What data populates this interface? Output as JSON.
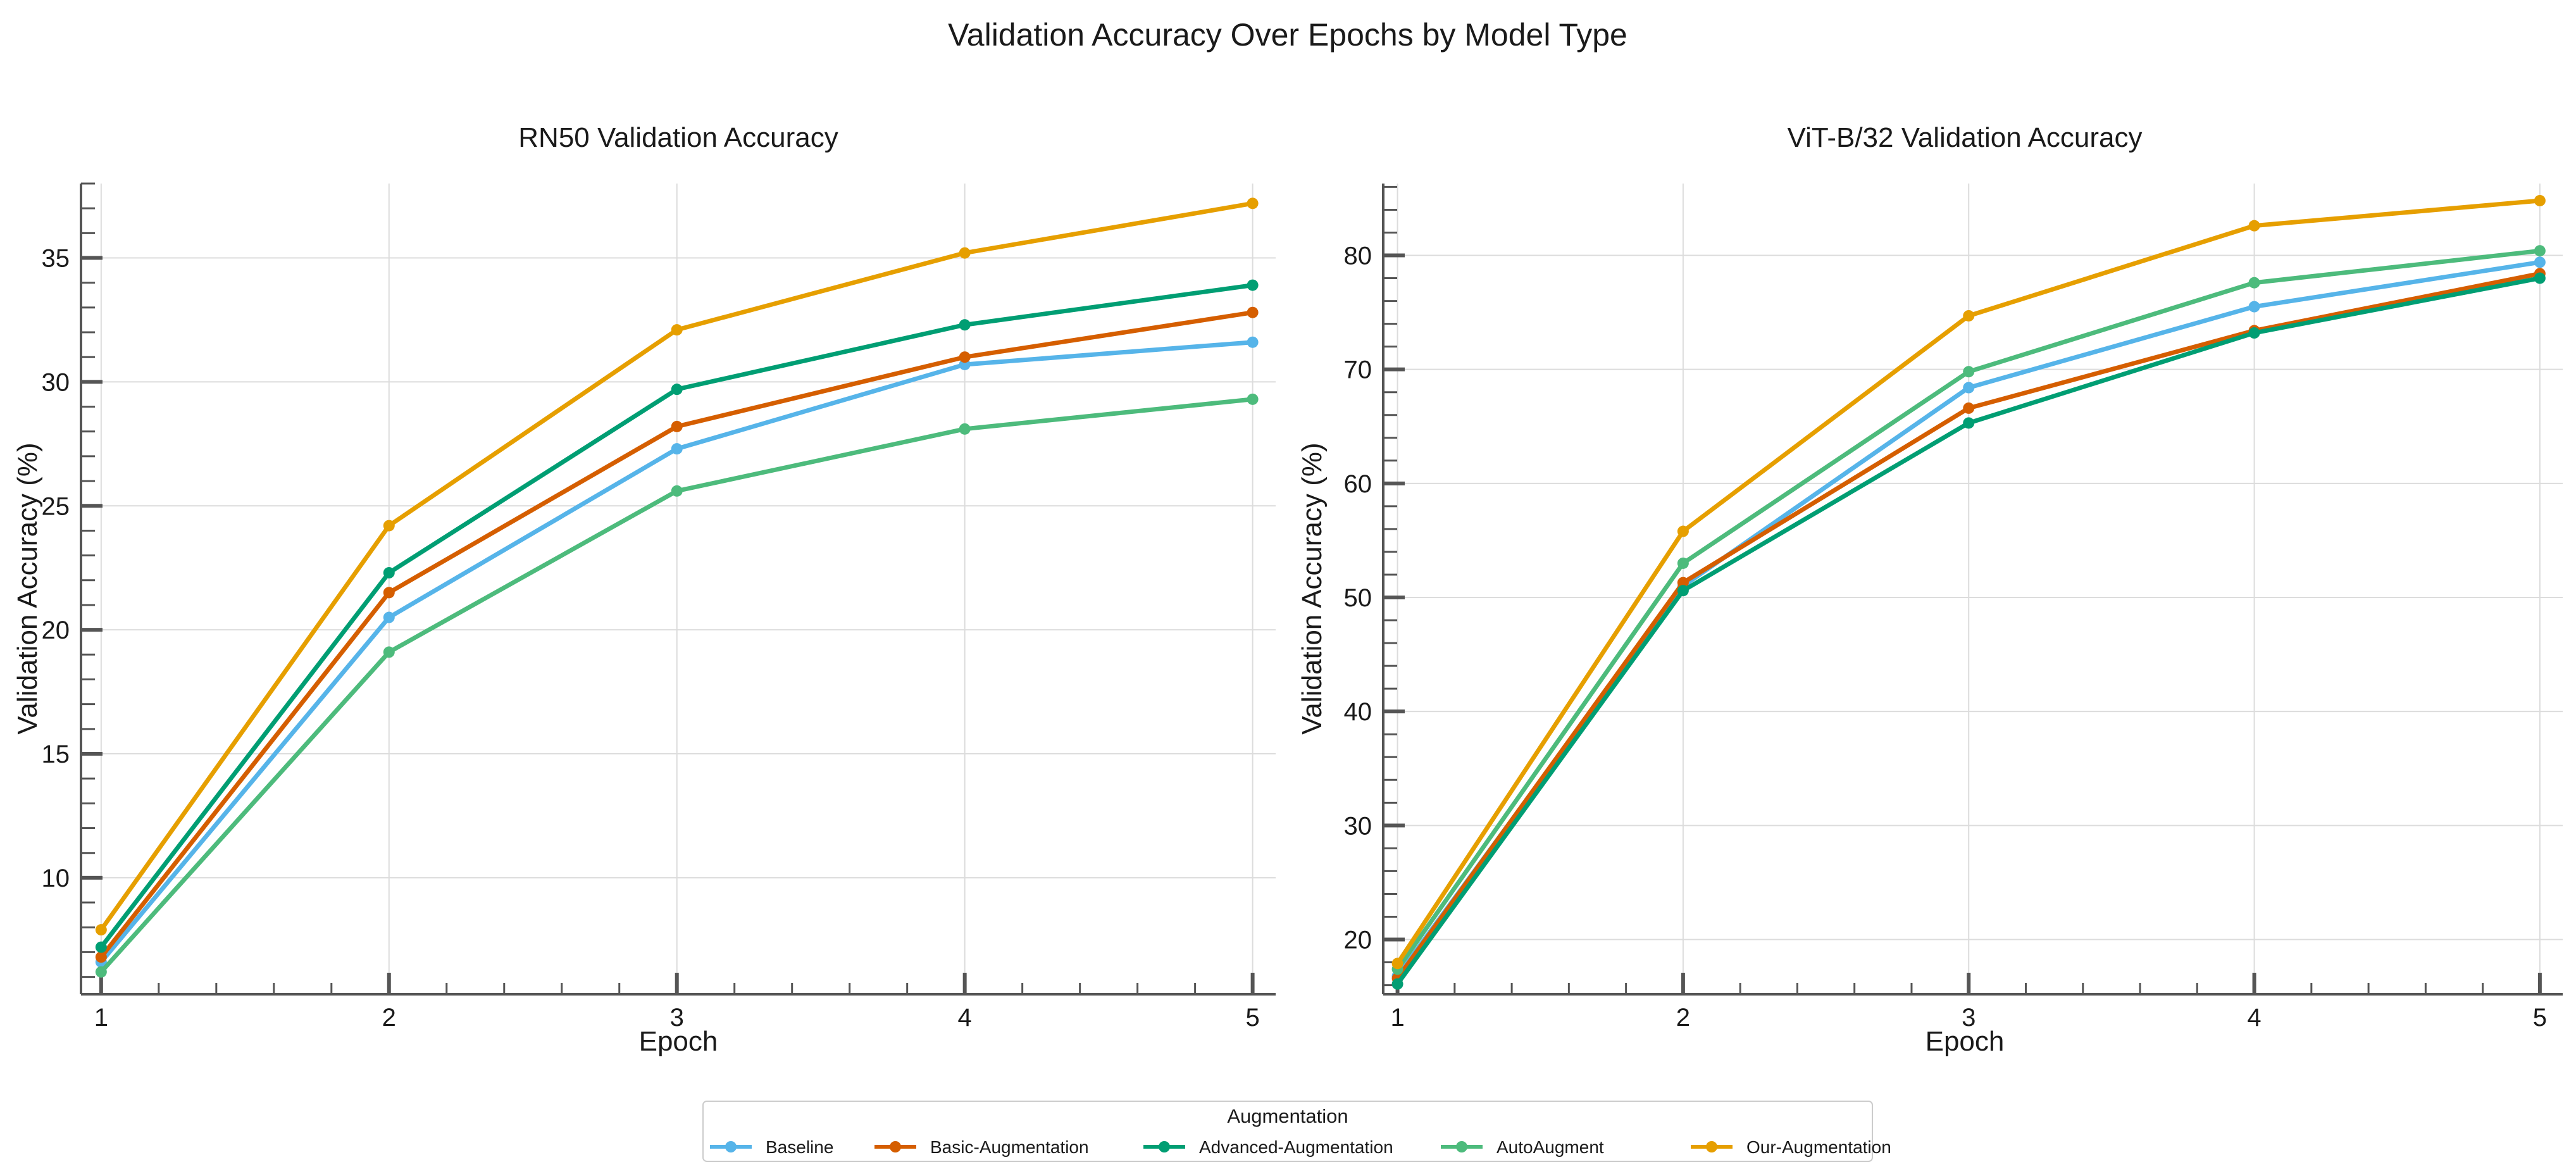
{
  "figure": {
    "title": "Validation Accuracy Over Epochs by Model Type"
  },
  "chart_data": [
    {
      "type": "line",
      "title": "RN50 Validation Accuracy",
      "xlabel": "Epoch",
      "ylabel": "Validation Accuracy (%)",
      "x": [
        1,
        2,
        3,
        4,
        5
      ],
      "xlim": [
        0.93,
        5.08
      ],
      "ylim": [
        5.3,
        38.0
      ],
      "xticks": [
        1,
        2,
        3,
        4,
        5
      ],
      "yticks": [
        10,
        15,
        20,
        25,
        30,
        35
      ],
      "grid": true,
      "series": [
        {
          "name": "Baseline",
          "values": [
            6.6,
            20.5,
            27.3,
            30.7,
            31.6
          ]
        },
        {
          "name": "Basic-Augmentation",
          "values": [
            6.8,
            21.5,
            28.2,
            31.0,
            32.8
          ]
        },
        {
          "name": "Advanced-Augmentation",
          "values": [
            7.2,
            22.3,
            29.7,
            32.3,
            33.9
          ]
        },
        {
          "name": "AutoAugment",
          "values": [
            6.2,
            19.1,
            25.6,
            28.1,
            29.3
          ]
        },
        {
          "name": "Our-Augmentation",
          "values": [
            7.9,
            24.2,
            32.1,
            35.2,
            37.2
          ]
        }
      ]
    },
    {
      "type": "line",
      "title": "ViT-B/32 Validation Accuracy",
      "xlabel": "Epoch",
      "ylabel": "Validation Accuracy (%)",
      "x": [
        1,
        2,
        3,
        4,
        5
      ],
      "xlim": [
        0.95,
        5.08
      ],
      "ylim": [
        15.2,
        86.3
      ],
      "xticks": [
        1,
        2,
        3,
        4,
        5
      ],
      "yticks": [
        20,
        30,
        40,
        50,
        60,
        70,
        80
      ],
      "grid": true,
      "series": [
        {
          "name": "Baseline",
          "values": [
            16.8,
            51.0,
            68.4,
            75.5,
            79.4
          ]
        },
        {
          "name": "Basic-Augmentation",
          "values": [
            16.6,
            51.3,
            66.6,
            73.4,
            78.4
          ]
        },
        {
          "name": "Advanced-Augmentation",
          "values": [
            16.1,
            50.6,
            65.3,
            73.2,
            78.0
          ]
        },
        {
          "name": "AutoAugment",
          "values": [
            17.4,
            53.0,
            69.8,
            77.6,
            80.4
          ]
        },
        {
          "name": "Our-Augmentation",
          "values": [
            17.9,
            55.8,
            74.7,
            82.6,
            84.8
          ]
        }
      ]
    }
  ],
  "legend": {
    "title": "Augmentation",
    "position": "bottom-center",
    "entries": [
      "Baseline",
      "Basic-Augmentation",
      "Advanced-Augmentation",
      "AutoAugment",
      "Our-Augmentation"
    ]
  },
  "colors": {
    "Baseline": "#56b4e9",
    "Basic-Augmentation": "#d55e00",
    "Advanced-Augmentation": "#009e73",
    "AutoAugment": "#4dbb7c",
    "Our-Augmentation": "#e69f00",
    "grid": "#dcdcdc",
    "axis": "#555555"
  }
}
